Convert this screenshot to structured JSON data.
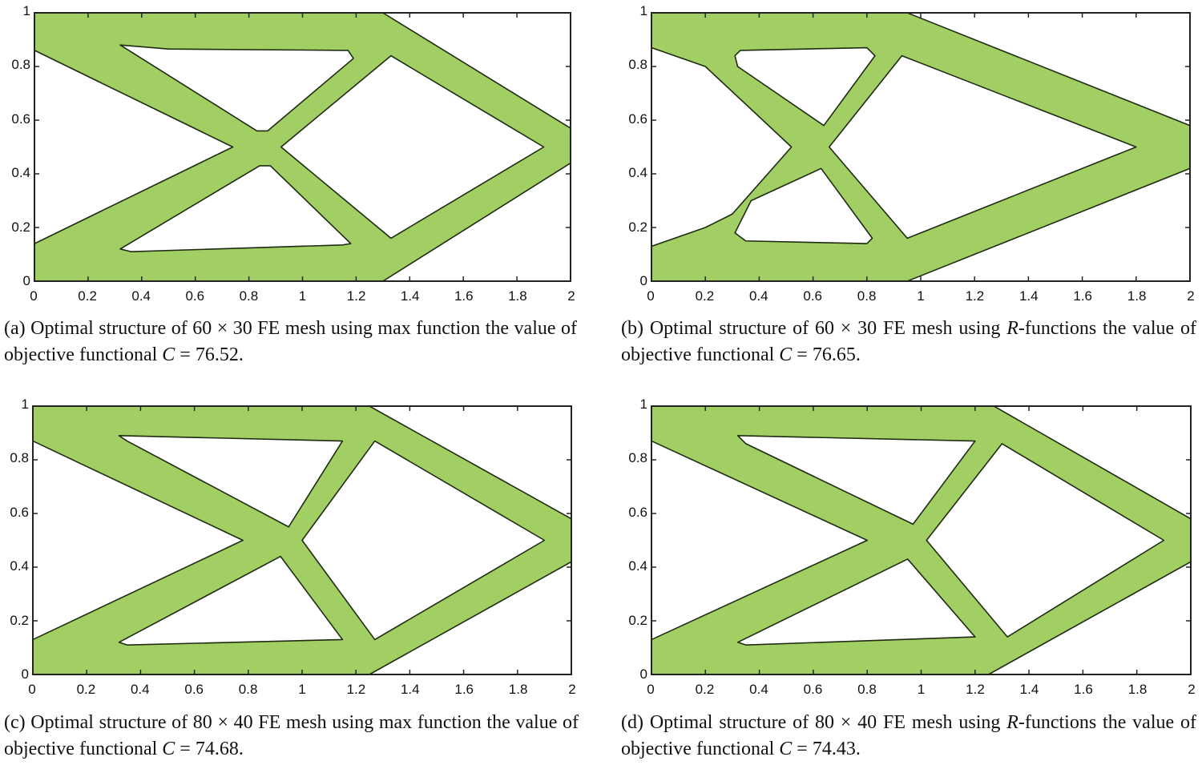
{
  "figure": {
    "fill_color": "#a2cf63",
    "edge_color": "#1e2a12",
    "x_ticks": [
      "0",
      "0.2",
      "0.4",
      "0.6",
      "0.8",
      "1",
      "1.2",
      "1.4",
      "1.6",
      "1.8",
      "2"
    ],
    "y_ticks": [
      "0",
      "0.2",
      "0.4",
      "0.6",
      "0.8",
      "1"
    ],
    "xlim": [
      0,
      2
    ],
    "ylim": [
      0,
      1
    ],
    "panels": [
      {
        "id": "a",
        "caption": [
          {
            "t": "(a) Optimal structure of 60 × 30 FE mesh using max function the value of objective functional "
          },
          {
            "t": "C",
            "i": true
          },
          {
            "t": " = 76.52."
          }
        ]
      },
      {
        "id": "b",
        "caption": [
          {
            "t": "(b) Optimal structure of 60 × 30 FE mesh using "
          },
          {
            "t": "R",
            "i": true
          },
          {
            "t": "-functions the value of objective functional "
          },
          {
            "t": "C",
            "i": true
          },
          {
            "t": " = 76.65."
          }
        ]
      },
      {
        "id": "c",
        "caption": [
          {
            "t": "(c) Optimal structure of 80 × 40 FE mesh using max function the value of objective functional "
          },
          {
            "t": "C",
            "i": true
          },
          {
            "t": " = 74.68."
          }
        ]
      },
      {
        "id": "d",
        "caption": [
          {
            "t": "(d) Optimal structure of 80 × 40 FE mesh using "
          },
          {
            "t": "R",
            "i": true
          },
          {
            "t": "-functions the value of objective functional "
          },
          {
            "t": "C",
            "i": true
          },
          {
            "t": " = 74.43."
          }
        ]
      }
    ]
  }
}
